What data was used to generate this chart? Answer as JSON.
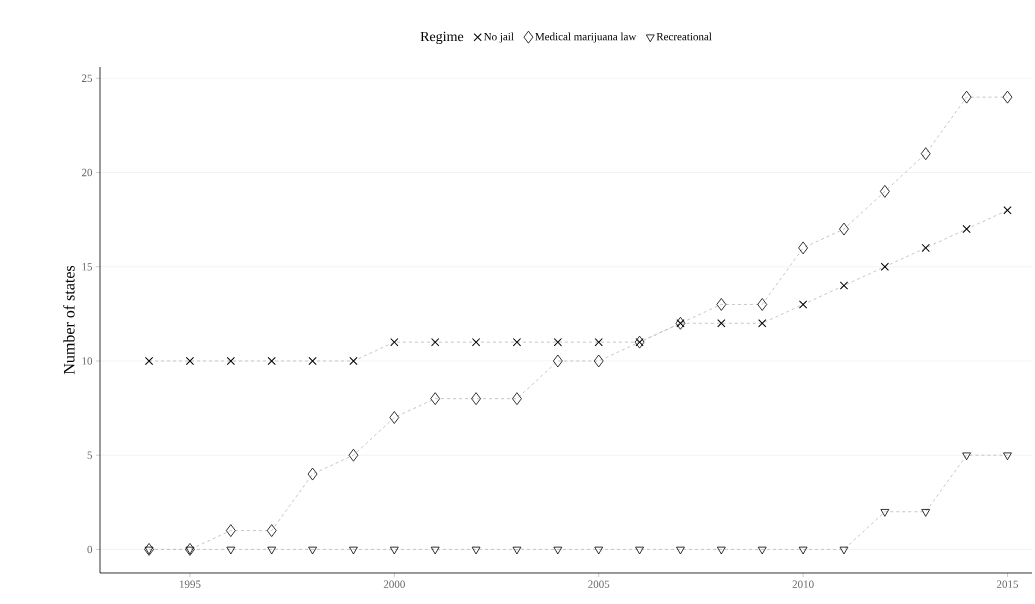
{
  "chart_data": {
    "type": "line",
    "legend_title": "Regime",
    "ylabel": "Number of states",
    "x": [
      1994,
      1995,
      1996,
      1997,
      1998,
      1999,
      2000,
      2001,
      2002,
      2003,
      2004,
      2005,
      2006,
      2007,
      2008,
      2009,
      2010,
      2011,
      2012,
      2013,
      2014,
      2015
    ],
    "series": [
      {
        "name": "No jail",
        "color": "#000000",
        "marker": "cross",
        "values": [
          10,
          10,
          10,
          10,
          10,
          10,
          11,
          11,
          11,
          11,
          11,
          11,
          11,
          12,
          12,
          12,
          13,
          14,
          15,
          16,
          17,
          18
        ]
      },
      {
        "name": "Medical marijuana law",
        "color": "#000000",
        "marker": "diamond",
        "values": [
          0,
          0,
          1,
          1,
          4,
          5,
          7,
          8,
          8,
          8,
          10,
          10,
          11,
          12,
          13,
          13,
          16,
          17,
          19,
          21,
          24,
          24
        ]
      },
      {
        "name": "Recreational",
        "color": "#000000",
        "marker": "triangle",
        "values": [
          0,
          0,
          0,
          0,
          0,
          0,
          0,
          0,
          0,
          0,
          0,
          0,
          0,
          0,
          0,
          0,
          0,
          0,
          2,
          2,
          5,
          5
        ]
      }
    ],
    "xlim": [
      1992.8,
      2015.6
    ],
    "ylim": [
      -1.25,
      25.6
    ],
    "xticks": [
      1995,
      2000,
      2005,
      2010,
      2015
    ],
    "yticks": [
      0,
      5,
      10,
      15,
      20,
      25
    ],
    "grid": "y",
    "legend": "top",
    "line_style": "dashed"
  }
}
